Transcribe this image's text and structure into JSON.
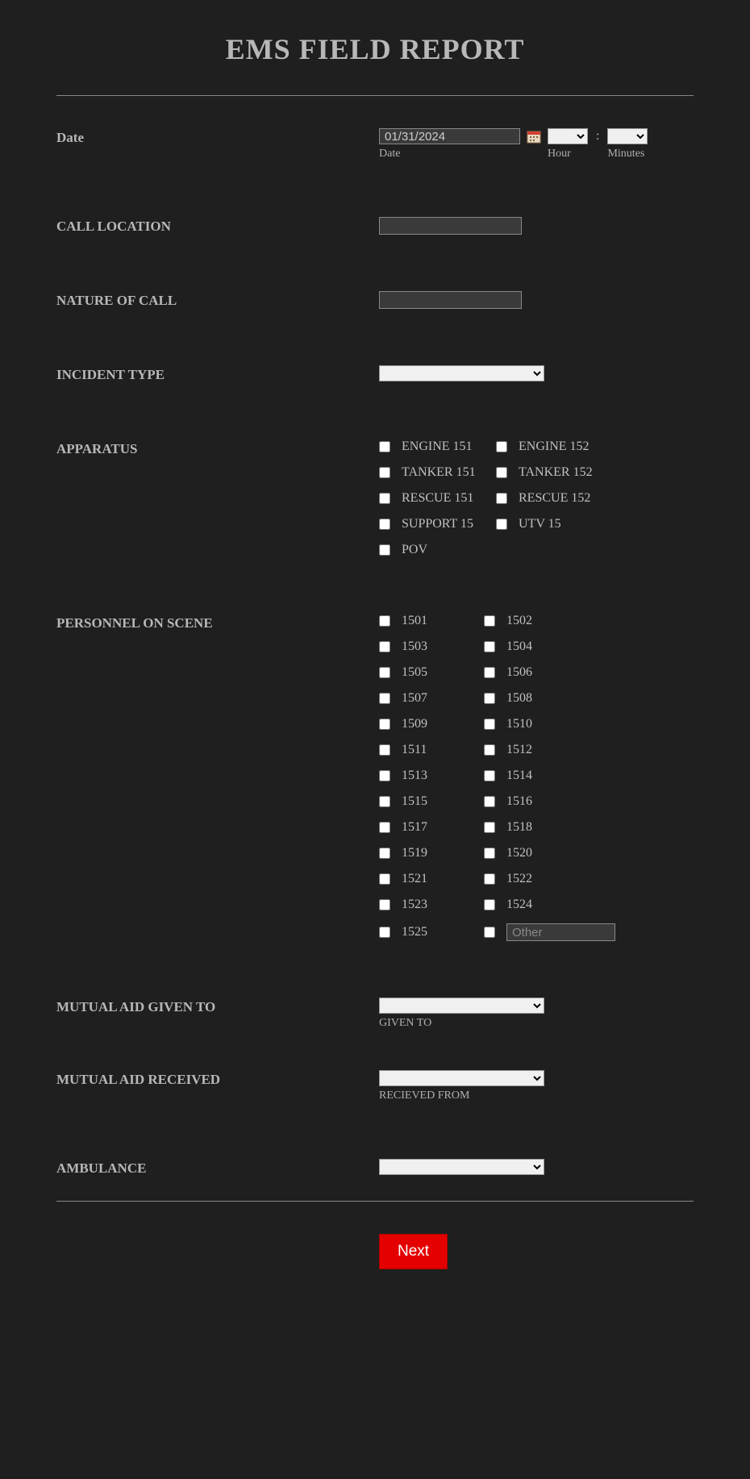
{
  "title": "EMS FIELD REPORT",
  "fields": {
    "date": {
      "label": "Date",
      "value": "01/31/2024",
      "sub_date": "Date",
      "sub_hour": "Hour",
      "sub_min": "Minutes"
    },
    "call_location": {
      "label": "CALL LOCATION"
    },
    "nature_of_call": {
      "label": "NATURE OF CALL"
    },
    "incident_type": {
      "label": "INCIDENT TYPE"
    },
    "apparatus": {
      "label": "APPARATUS",
      "options": [
        "ENGINE 151",
        "ENGINE 152",
        "TANKER 151",
        "TANKER 152",
        "RESCUE 151",
        "RESCUE 152",
        "SUPPORT 15",
        "UTV 15",
        "POV"
      ]
    },
    "personnel": {
      "label": "PERSONNEL ON SCENE",
      "options": [
        "1501",
        "1502",
        "1503",
        "1504",
        "1505",
        "1506",
        "1507",
        "1508",
        "1509",
        "1510",
        "1511",
        "1512",
        "1513",
        "1514",
        "1515",
        "1516",
        "1517",
        "1518",
        "1519",
        "1520",
        "1521",
        "1522",
        "1523",
        "1524",
        "1525"
      ],
      "other_placeholder": "Other"
    },
    "mutual_aid_given": {
      "label": "MUTUAL AID GIVEN TO",
      "sub": "GIVEN TO"
    },
    "mutual_aid_received": {
      "label": "MUTUAL AID RECEIVED",
      "sub": "RECIEVED FROM"
    },
    "ambulance": {
      "label": "AMBULANCE"
    }
  },
  "next_button": "Next",
  "colors": {
    "bg": "#1f1f1f",
    "text": "#b8b8b8",
    "input_bg": "#3a3a3a",
    "next_bg": "#e40000"
  }
}
